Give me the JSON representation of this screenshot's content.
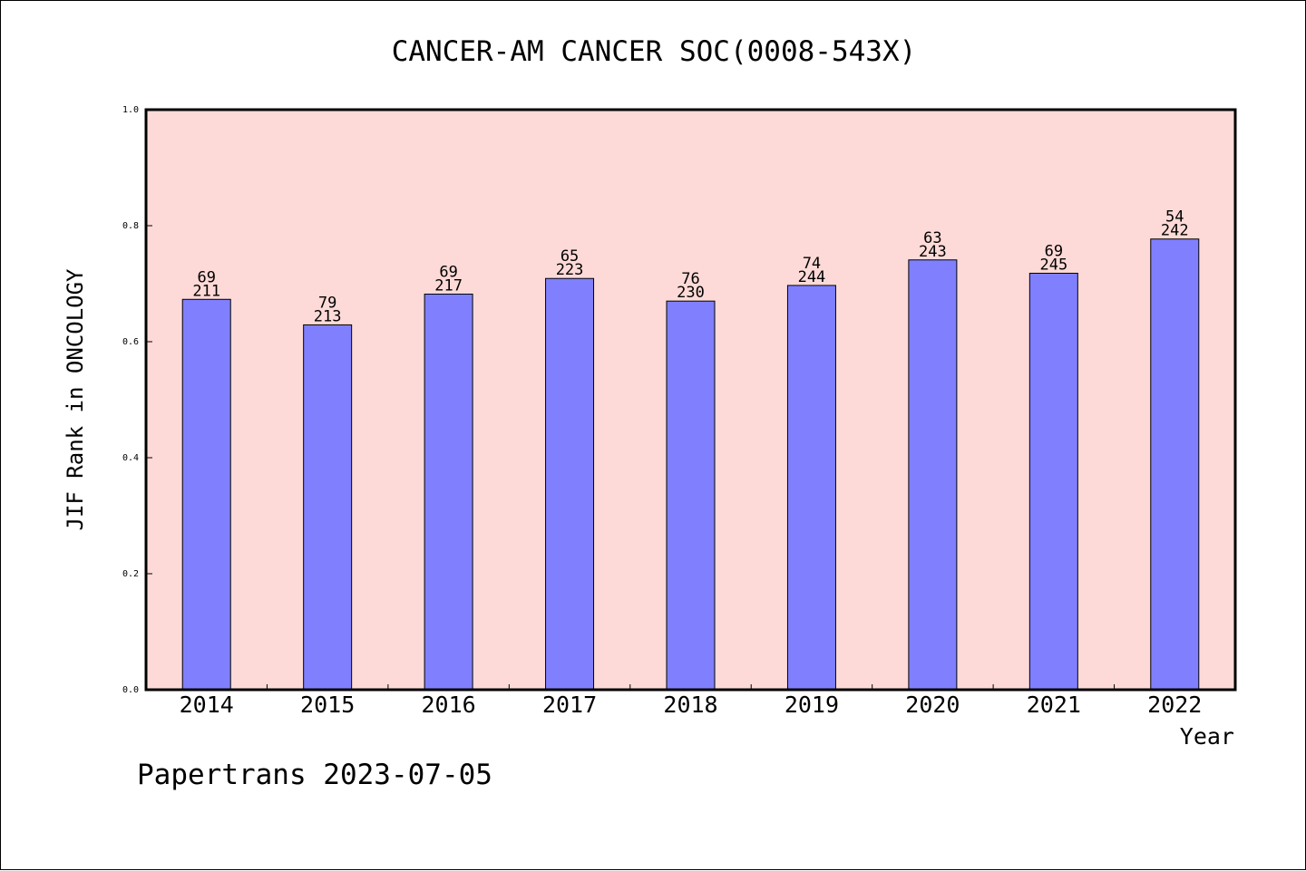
{
  "chart_data": {
    "type": "bar",
    "title": "CANCER-AM CANCER SOC(0008-543X)",
    "xlabel": "Year",
    "ylabel": "JIF Rank in ONCOLOGY",
    "ylim": [
      0,
      1.0
    ],
    "yticks": [
      "0.0",
      "0.2",
      "0.4",
      "0.6",
      "0.8",
      "1.0"
    ],
    "categories": [
      "2014",
      "2015",
      "2016",
      "2017",
      "2018",
      "2019",
      "2020",
      "2021",
      "2022"
    ],
    "values": [
      0.673,
      0.629,
      0.682,
      0.709,
      0.67,
      0.697,
      0.741,
      0.718,
      0.777
    ],
    "rank_labels": [
      "69",
      "79",
      "69",
      "65",
      "76",
      "74",
      "63",
      "69",
      "54"
    ],
    "total_labels": [
      "211",
      "213",
      "217",
      "223",
      "230",
      "244",
      "243",
      "245",
      "242"
    ],
    "colors": {
      "plot_background": "#fddad7",
      "bar_fill": "#8080ff",
      "bar_stroke": "#000000"
    }
  },
  "footer": {
    "credit": "Papertrans 2023-07-05"
  }
}
